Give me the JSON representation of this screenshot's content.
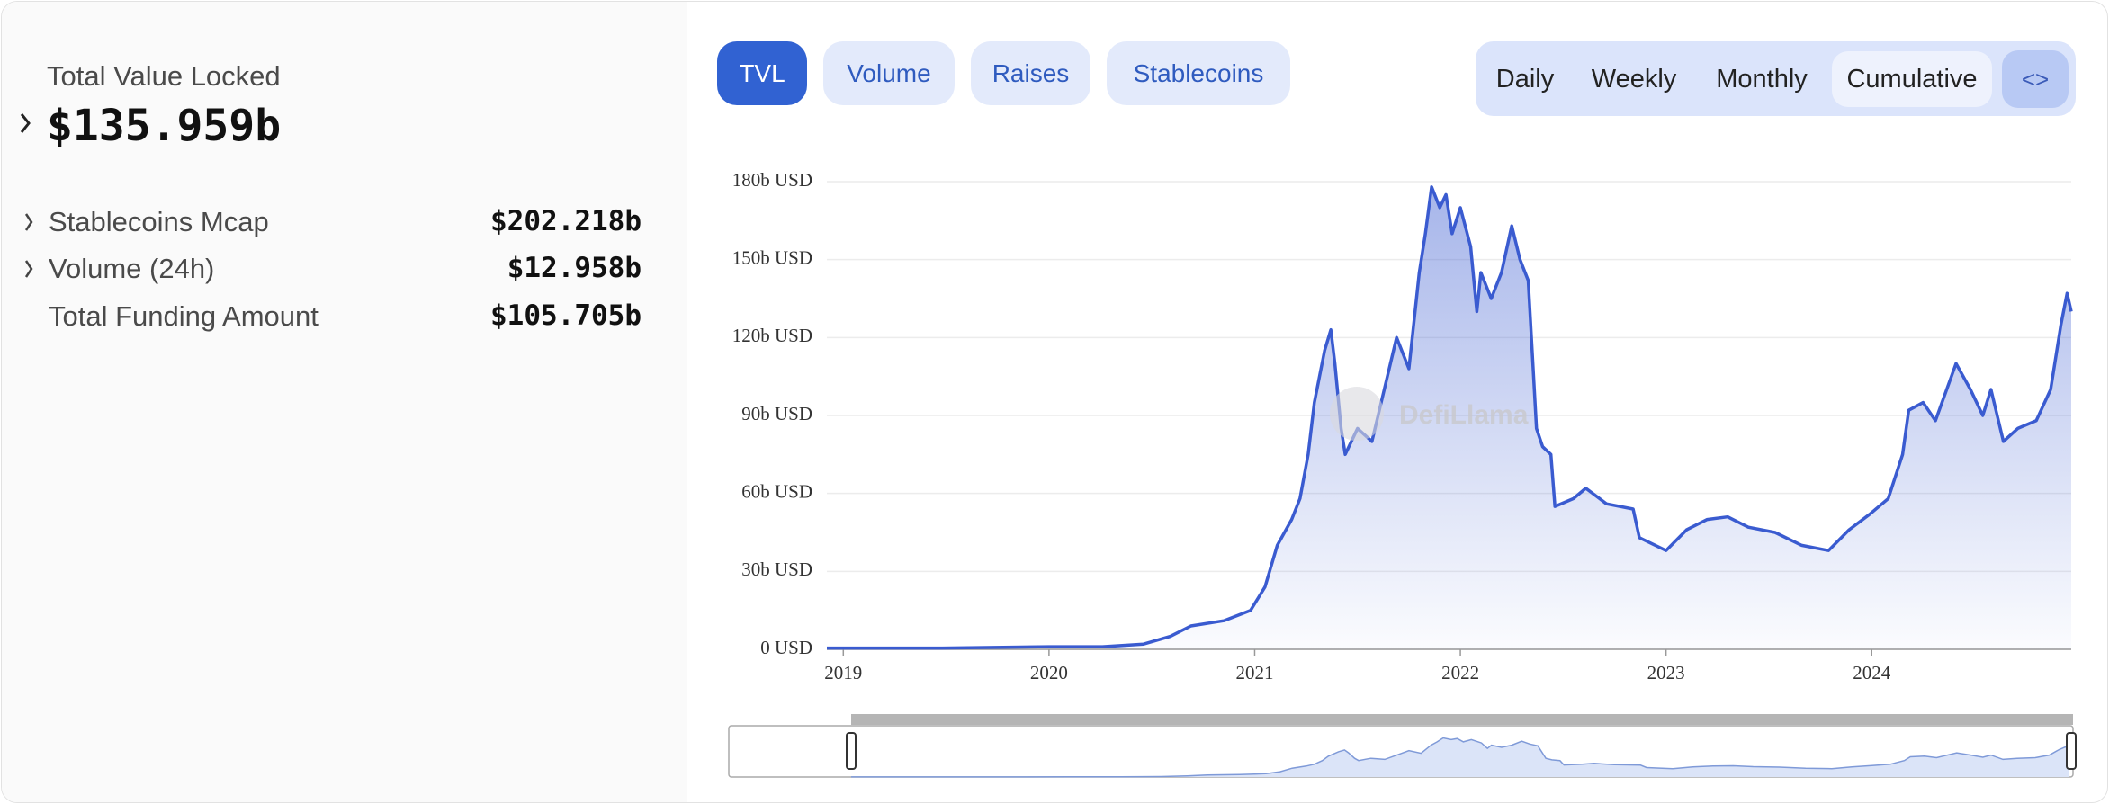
{
  "summary": {
    "title": "Total Value Locked",
    "value": "$135.959b",
    "rows": [
      {
        "label": "Stablecoins Mcap",
        "value": "$202.218b"
      },
      {
        "label": "Volume (24h)",
        "value": "$12.958b"
      },
      {
        "label": "Total Funding Amount",
        "value": "$105.705b"
      }
    ]
  },
  "tabs": [
    "TVL",
    "Volume",
    "Raises",
    "Stablecoins"
  ],
  "periods": [
    "Daily",
    "Weekly",
    "Monthly",
    "Cumulative"
  ],
  "embed_button": "<>",
  "chart_data": {
    "type": "area",
    "watermark": "DefiLlama",
    "color": "#3a5bd0",
    "x": [
      2018.92,
      2019.48,
      2020.0,
      2020.26,
      2020.46,
      2020.59,
      2020.69,
      2020.85,
      2020.98,
      2021.05,
      2021.11,
      2021.18,
      2021.22,
      2021.26,
      2021.29,
      2021.34,
      2021.37,
      2021.39,
      2021.42,
      2021.44,
      2021.5,
      2021.57,
      2021.63,
      2021.69,
      2021.75,
      2021.8,
      2021.83,
      2021.86,
      2021.9,
      2021.93,
      2021.96,
      2022.0,
      2022.05,
      2022.08,
      2022.1,
      2022.15,
      2022.2,
      2022.25,
      2022.29,
      2022.33,
      2022.37,
      2022.4,
      2022.44,
      2022.46,
      2022.55,
      2022.61,
      2022.71,
      2022.84,
      2022.87,
      2023.0,
      2023.1,
      2023.2,
      2023.3,
      2023.4,
      2023.53,
      2023.66,
      2023.79,
      2023.89,
      2023.99,
      2024.08,
      2024.15,
      2024.18,
      2024.25,
      2024.31,
      2024.41,
      2024.48,
      2024.54,
      2024.58,
      2024.64,
      2024.71,
      2024.8,
      2024.87,
      2024.92,
      2024.95,
      2024.97
    ],
    "values": [
      0.5,
      0.5,
      1,
      1,
      2,
      5,
      9,
      11,
      15,
      24,
      40,
      50,
      58,
      75,
      95,
      115,
      123,
      110,
      85,
      75,
      85,
      80,
      100,
      120,
      108,
      145,
      160,
      178,
      170,
      175,
      160,
      170,
      155,
      130,
      145,
      135,
      145,
      163,
      150,
      142,
      85,
      78,
      75,
      55,
      58,
      62,
      56,
      54,
      43,
      38,
      46,
      50,
      51,
      47,
      45,
      40,
      38,
      46,
      52,
      58,
      75,
      92,
      95,
      88,
      110,
      100,
      90,
      100,
      80,
      85,
      88,
      100,
      125,
      137,
      130
    ],
    "xlim": [
      2018.92,
      2024.97
    ],
    "xticks": [
      2019,
      2020,
      2021,
      2022,
      2023,
      2024
    ],
    "ylim": [
      0,
      180
    ],
    "yticks": [
      {
        "value": 0,
        "label": "0 USD"
      },
      {
        "value": 30,
        "label": "30b USD"
      },
      {
        "value": 60,
        "label": "60b USD"
      },
      {
        "value": 90,
        "label": "90b USD"
      },
      {
        "value": 120,
        "label": "120b USD"
      },
      {
        "value": 150,
        "label": "150b USD"
      },
      {
        "value": 180,
        "label": "180b USD"
      }
    ],
    "grid": true
  }
}
